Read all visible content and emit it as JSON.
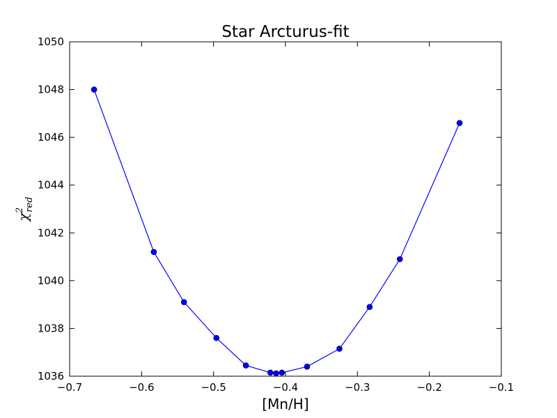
{
  "chart_data": {
    "type": "line",
    "title": "Star Arcturus-fit",
    "xlabel": "[Mn/H]",
    "ylabel": {
      "base": "χ",
      "superscript": "2",
      "subscript": "red"
    },
    "xlim": [
      -0.7,
      -0.1
    ],
    "ylim": [
      1036,
      1050
    ],
    "xticks": [
      -0.7,
      -0.6,
      -0.5,
      -0.4,
      -0.3,
      -0.2,
      -0.1
    ],
    "xtick_labels": [
      "−0.7",
      "−0.6",
      "−0.5",
      "−0.4",
      "−0.3",
      "−0.2",
      "−0.1"
    ],
    "yticks": [
      1036,
      1038,
      1040,
      1042,
      1044,
      1046,
      1048,
      1050
    ],
    "ytick_labels": [
      "1036",
      "1038",
      "1040",
      "1042",
      "1044",
      "1046",
      "1048",
      "1050"
    ],
    "grid": false,
    "series": [
      {
        "color": "#0000ff",
        "marker": "circle",
        "x": [
          -0.666,
          -0.583,
          -0.541,
          -0.496,
          -0.455,
          -0.421,
          -0.413,
          -0.405,
          -0.37,
          -0.325,
          -0.283,
          -0.241,
          -0.158
        ],
        "y": [
          1048.0,
          1041.2,
          1039.1,
          1037.6,
          1036.45,
          1036.15,
          1036.12,
          1036.15,
          1036.4,
          1037.15,
          1038.9,
          1040.9,
          1046.6
        ]
      }
    ]
  }
}
